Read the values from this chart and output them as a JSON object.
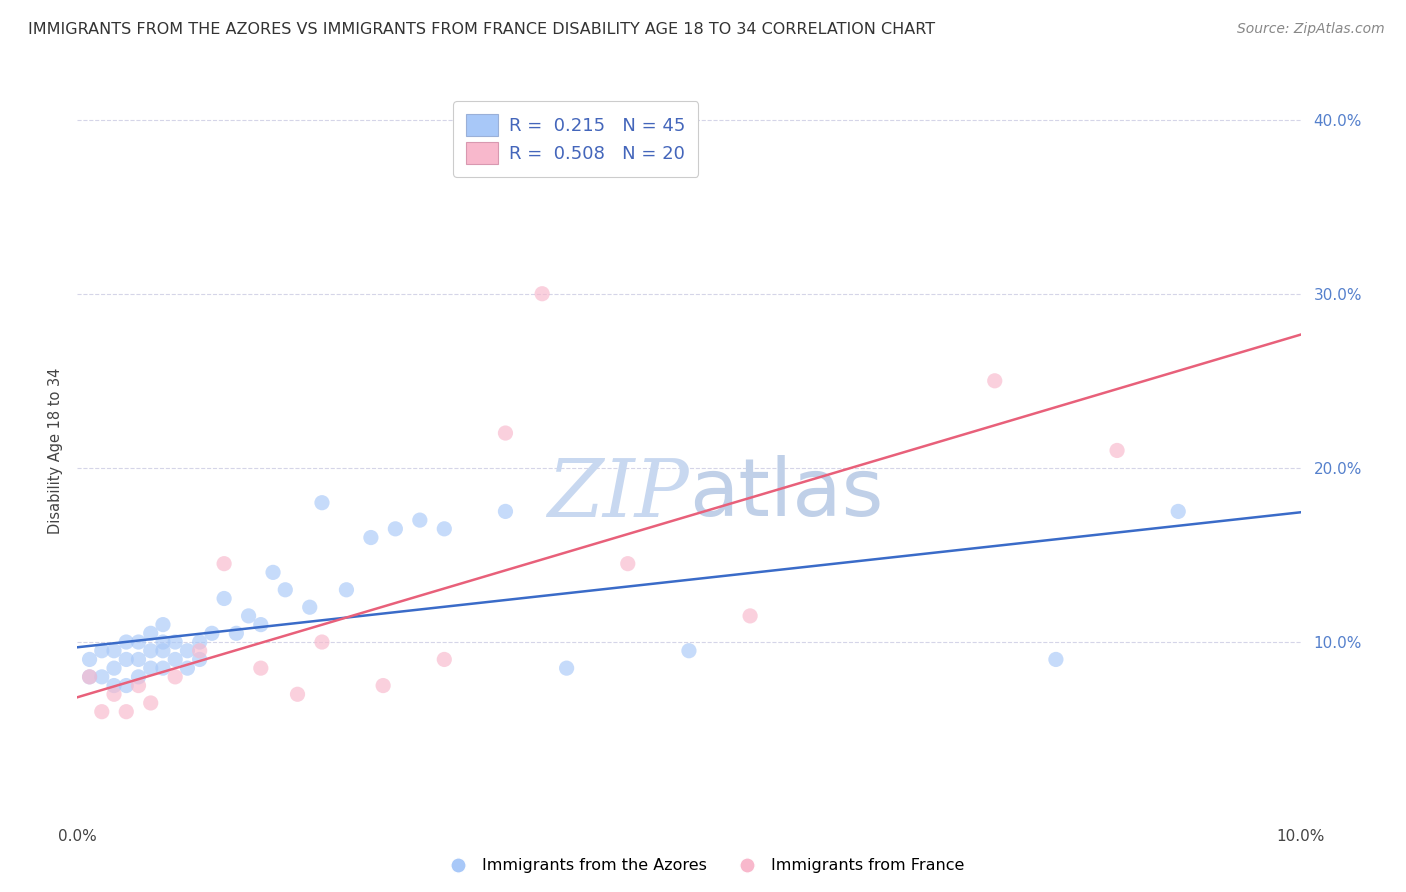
{
  "title": "IMMIGRANTS FROM THE AZORES VS IMMIGRANTS FROM FRANCE DISABILITY AGE 18 TO 34 CORRELATION CHART",
  "source": "Source: ZipAtlas.com",
  "ylabel": "Disability Age 18 to 34",
  "legend_blue_r": "0.215",
  "legend_blue_n": "45",
  "legend_pink_r": "0.508",
  "legend_pink_n": "20",
  "legend_blue_label": "Immigrants from the Azores",
  "legend_pink_label": "Immigrants from France",
  "xmin": 0.0,
  "xmax": 0.1,
  "ymin": 0.0,
  "ymax": 0.42,
  "yticks": [
    0.1,
    0.2,
    0.3,
    0.4
  ],
  "ytick_labels": [
    "10.0%",
    "20.0%",
    "30.0%",
    "40.0%"
  ],
  "background_color": "#ffffff",
  "watermark_zip": "ZIP",
  "watermark_atlas": "atlas",
  "blue_scatter_x": [
    0.001,
    0.001,
    0.002,
    0.002,
    0.003,
    0.003,
    0.003,
    0.004,
    0.004,
    0.004,
    0.005,
    0.005,
    0.005,
    0.006,
    0.006,
    0.006,
    0.007,
    0.007,
    0.007,
    0.007,
    0.008,
    0.008,
    0.009,
    0.009,
    0.01,
    0.01,
    0.011,
    0.012,
    0.013,
    0.014,
    0.015,
    0.016,
    0.017,
    0.019,
    0.02,
    0.022,
    0.024,
    0.026,
    0.028,
    0.03,
    0.035,
    0.04,
    0.05,
    0.08,
    0.09
  ],
  "blue_scatter_y": [
    0.08,
    0.09,
    0.08,
    0.095,
    0.075,
    0.085,
    0.095,
    0.075,
    0.09,
    0.1,
    0.08,
    0.09,
    0.1,
    0.085,
    0.095,
    0.105,
    0.085,
    0.095,
    0.1,
    0.11,
    0.09,
    0.1,
    0.085,
    0.095,
    0.09,
    0.1,
    0.105,
    0.125,
    0.105,
    0.115,
    0.11,
    0.14,
    0.13,
    0.12,
    0.18,
    0.13,
    0.16,
    0.165,
    0.17,
    0.165,
    0.175,
    0.085,
    0.095,
    0.09,
    0.175
  ],
  "pink_scatter_x": [
    0.001,
    0.002,
    0.003,
    0.004,
    0.005,
    0.006,
    0.008,
    0.01,
    0.012,
    0.015,
    0.018,
    0.02,
    0.025,
    0.03,
    0.035,
    0.038,
    0.045,
    0.055,
    0.075,
    0.085
  ],
  "pink_scatter_y": [
    0.08,
    0.06,
    0.07,
    0.06,
    0.075,
    0.065,
    0.08,
    0.095,
    0.145,
    0.085,
    0.07,
    0.1,
    0.075,
    0.09,
    0.22,
    0.3,
    0.145,
    0.115,
    0.25,
    0.21
  ],
  "blue_line_color": "#3a6bc8",
  "pink_line_color": "#e8607a",
  "blue_scatter_color": "#a8c8f8",
  "pink_scatter_color": "#f8b8cc",
  "grid_color": "#d5d5e8",
  "grid_style": "--",
  "title_fontsize": 11.5,
  "source_fontsize": 10,
  "watermark_color_zip": "#c8d8f0",
  "watermark_color_atlas": "#c0d0e8",
  "watermark_fontsize": 58,
  "scatter_size": 120,
  "scatter_alpha": 0.65,
  "line_width": 1.8
}
